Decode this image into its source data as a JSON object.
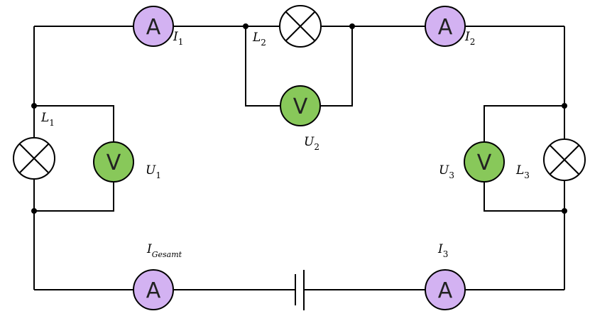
{
  "colors": {
    "wire": "#000000",
    "ammeter": "#d3b2f2",
    "voltmeter": "#88c85a",
    "lamp": "#ffffff"
  },
  "meters": {
    "ammeter_symbol": "A",
    "voltmeter_symbol": "V"
  },
  "labels": {
    "I1": {
      "main": "I",
      "sub": "1"
    },
    "I2": {
      "main": "I",
      "sub": "2"
    },
    "I3": {
      "main": "I",
      "sub": "3"
    },
    "Igesamt": {
      "main": "I",
      "sub": "Gesamt"
    },
    "L1": {
      "main": "L",
      "sub": "1"
    },
    "L2": {
      "main": "L",
      "sub": "2"
    },
    "L3": {
      "main": "L",
      "sub": "3"
    },
    "U1": {
      "main": "U",
      "sub": "1"
    },
    "U2": {
      "main": "U",
      "sub": "2"
    },
    "U3": {
      "main": "U",
      "sub": "3"
    }
  }
}
